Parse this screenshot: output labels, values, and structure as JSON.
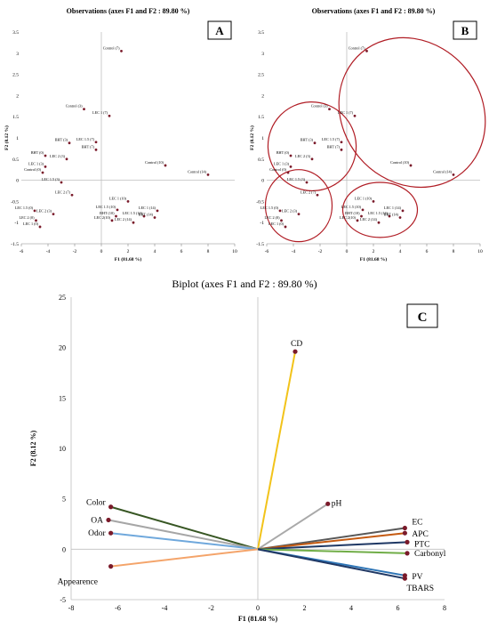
{
  "panels": {
    "a": {
      "letter": "A",
      "title": "Observations (axes F1 and F2 : 89.80 %)"
    },
    "b": {
      "letter": "B",
      "title": "Observations (axes F1 and F2 : 89.80 %)"
    },
    "c": {
      "letter": "C",
      "title": "Biplot (axes F1 and F2 : 89.80  %)"
    }
  },
  "colors": {
    "point": "#7a1a2a",
    "ellipse": "#b01c24",
    "axis": "#bfbfbf",
    "CD": "#f2c31a",
    "pH": "#a9a9a9",
    "EC": "#595959",
    "APC": "#c55a11",
    "PTC": "#1f3864",
    "Carbonyl": "#70ad47",
    "PV": "#2e75b6",
    "TBARS": "#203864",
    "Color": "#375623",
    "OA": "#a6a6a6",
    "Odor": "#6fa8dc",
    "Appearence": "#f4a46a"
  },
  "chart_data": [
    {
      "type": "scatter",
      "title": "Observations (axes F1 and F2 : 89.80 %)",
      "xlabel": "F1 (81.68 %)",
      "ylabel": "F2 (8.12 %)",
      "xlim": [
        -6,
        10
      ],
      "ylim": [
        -1.5,
        3.5
      ],
      "xticks": [
        "-6",
        "-4",
        "-2",
        "0",
        "2",
        "4",
        "6",
        "8",
        "10"
      ],
      "yticks": [
        "-1.5",
        "-1",
        "-0.5",
        "0",
        "0.5",
        "1",
        "1.5",
        "2",
        "2.5",
        "3",
        "3.5"
      ],
      "points": [
        {
          "label": "Control (7)",
          "x": 1.5,
          "y": 3.05
        },
        {
          "label": "Control (3)",
          "x": -1.3,
          "y": 1.68
        },
        {
          "label": "LEC 1 (7)",
          "x": 0.6,
          "y": 1.52
        },
        {
          "label": "BHT (3)",
          "x": -2.4,
          "y": 0.88
        },
        {
          "label": "LEC 1.5 (7)",
          "x": -0.4,
          "y": 0.9
        },
        {
          "label": "BHT (7)",
          "x": -0.4,
          "y": 0.72
        },
        {
          "label": "BHT (0)",
          "x": -4.2,
          "y": 0.58
        },
        {
          "label": "LEC 2 (3)",
          "x": -2.6,
          "y": 0.5
        },
        {
          "label": "LEC 1 (3)",
          "x": -4.2,
          "y": 0.32
        },
        {
          "label": "Control (0)",
          "x": -4.4,
          "y": 0.18
        },
        {
          "label": "Control (10)",
          "x": 4.8,
          "y": 0.35
        },
        {
          "label": "Control (14)",
          "x": 8.0,
          "y": 0.13
        },
        {
          "label": "LEC 1.5 (3)",
          "x": -3.0,
          "y": -0.05
        },
        {
          "label": "LEC 2 (7)",
          "x": -2.2,
          "y": -0.35
        },
        {
          "label": "LEC 1 (10)",
          "x": 2.0,
          "y": -0.5
        },
        {
          "label": "LEC 1.5 (10)",
          "x": 1.2,
          "y": -0.7
        },
        {
          "label": "LEC 1 (14)",
          "x": 4.2,
          "y": -0.72
        },
        {
          "label": "BHT (10)",
          "x": 1.1,
          "y": -0.85
        },
        {
          "label": "LEC 1.5 (14)",
          "x": 3.2,
          "y": -0.85
        },
        {
          "label": "BHT (14)",
          "x": 4.0,
          "y": -0.88
        },
        {
          "label": "LEC 2(10)",
          "x": 0.8,
          "y": -0.95
        },
        {
          "label": "LEC 2 (14)",
          "x": 2.4,
          "y": -1.0
        },
        {
          "label": "LEC 1.5 (0)",
          "x": -5.0,
          "y": -0.72
        },
        {
          "label": "LEC 2 (3)",
          "x": -3.6,
          "y": -0.8
        },
        {
          "label": "LEC 2 (0)",
          "x": -4.9,
          "y": -0.95
        },
        {
          "label": "LEC 1 (0)",
          "x": -4.6,
          "y": -1.1
        }
      ]
    },
    {
      "type": "scatter",
      "title": "Observations (axes F1 and F2 : 89.80 %)",
      "xlabel": "F1 (81.68 %)",
      "ylabel": "F2 (8.12 %)",
      "xlim": [
        -6,
        10
      ],
      "ylim": [
        -1.5,
        3.5
      ],
      "xticks": [
        "-6",
        "-4",
        "-2",
        "0",
        "2",
        "4",
        "6",
        "8",
        "10"
      ],
      "yticks": [
        "-1.5",
        "-1",
        "-0.5",
        "0",
        "0.5",
        "1",
        "1.5",
        "2",
        "2.5",
        "3",
        "3.5"
      ],
      "points": "same observations as panel A",
      "groups": [
        {
          "cx": 4.9,
          "cy": 1.6,
          "rx": 5.2,
          "ry": 1.85,
          "angle": -40
        },
        {
          "cx": -2.6,
          "cy": 0.8,
          "rx": 3.3,
          "ry": 1.05,
          "angle": -24
        },
        {
          "cx": -3.6,
          "cy": -0.6,
          "rx": 2.5,
          "ry": 0.85,
          "angle": 0
        },
        {
          "cx": 2.5,
          "cy": -0.7,
          "rx": 2.8,
          "ry": 0.65,
          "angle": 0
        }
      ]
    },
    {
      "type": "biplot",
      "title": "Biplot (axes F1 and F2 : 89.80  %)",
      "xlabel": "F1 (81.68 %)",
      "ylabel": "F2 (8.12 %)",
      "xlim": [
        -8,
        8
      ],
      "ylim": [
        -5,
        25
      ],
      "xticks": [
        "-8",
        "-6",
        "-4",
        "-2",
        "0",
        "2",
        "4",
        "6",
        "8"
      ],
      "yticks": [
        "-5",
        "0",
        "5",
        "10",
        "15",
        "20",
        "25"
      ],
      "vectors": [
        {
          "label": "CD",
          "x": 1.6,
          "y": 19.6
        },
        {
          "label": "pH",
          "x": 3.0,
          "y": 4.5
        },
        {
          "label": "EC",
          "x": 6.3,
          "y": 2.1
        },
        {
          "label": "APC",
          "x": 6.3,
          "y": 1.6
        },
        {
          "label": "PTC",
          "x": 6.4,
          "y": 0.7
        },
        {
          "label": "Carbonyl",
          "x": 6.4,
          "y": -0.4
        },
        {
          "label": "PV",
          "x": 6.3,
          "y": -2.6
        },
        {
          "label": "TBARS",
          "x": 6.3,
          "y": -2.9
        },
        {
          "label": "Color",
          "x": -6.3,
          "y": 4.2
        },
        {
          "label": "OA",
          "x": -6.4,
          "y": 2.9
        },
        {
          "label": "Odor",
          "x": -6.3,
          "y": 1.6
        },
        {
          "label": "Appearence",
          "x": -6.3,
          "y": -1.7
        }
      ]
    }
  ]
}
